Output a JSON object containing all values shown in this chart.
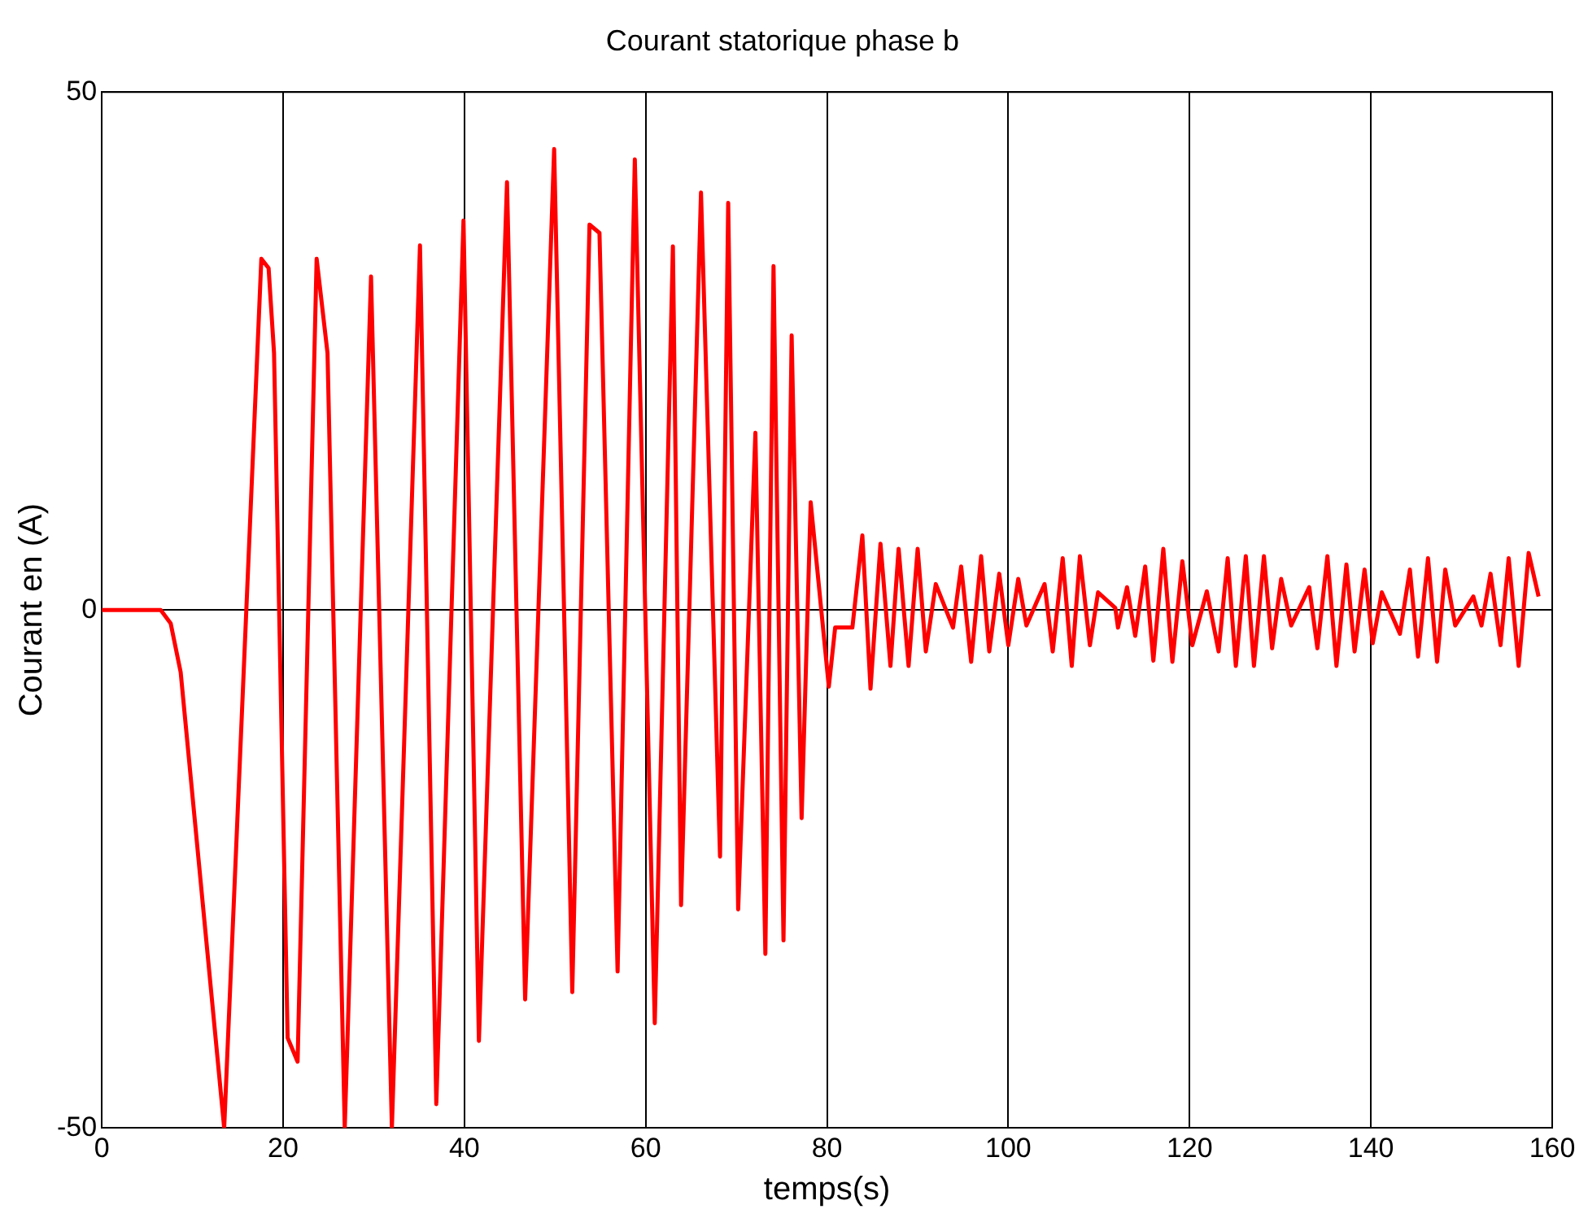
{
  "chart_data": {
    "type": "line",
    "title": "Courant statorique phase b",
    "xlabel": "temps(s)",
    "ylabel": "Courant en (A)",
    "xlim": [
      0,
      160
    ],
    "ylim": [
      -50,
      50
    ],
    "xticks": [
      0,
      20,
      40,
      60,
      80,
      100,
      120,
      140,
      160
    ],
    "yticks": [
      -50,
      0,
      50
    ],
    "grid": true,
    "legend": false,
    "marker": "none",
    "line_style": "solid",
    "series": [
      {
        "color": "#ff0000",
        "x": [
          0,
          6.5,
          7.6,
          8.7,
          13.5,
          17.6,
          18.4,
          19,
          20.5,
          21.6,
          23.7,
          24.9,
          26.8,
          29.7,
          32,
          35.1,
          36.9,
          39.9,
          41.6,
          44.7,
          46.7,
          49.9,
          51.9,
          53.8,
          54.9,
          56.9,
          58.8,
          61,
          63,
          63.9,
          66.1,
          68.2,
          69.1,
          70.2,
          72.1,
          73.2,
          74.1,
          75.2,
          76.1,
          77.2,
          78.2,
          80.2,
          80.9,
          82.8,
          83.9,
          84.8,
          85.9,
          87,
          87.9,
          89,
          90,
          90.9,
          92,
          93.9,
          94.8,
          95.9,
          97,
          97.9,
          99,
          100,
          101.1,
          102,
          104,
          104.9,
          106,
          107,
          107.9,
          109,
          109.9,
          111.8,
          112.1,
          113.1,
          114,
          115.1,
          116,
          117.1,
          118.1,
          119.2,
          120.3,
          121.9,
          123.2,
          124.2,
          125.1,
          126.2,
          127.1,
          128.2,
          129.1,
          130.1,
          131.2,
          133.2,
          134.1,
          135.2,
          136.2,
          137.3,
          138.2,
          139.3,
          140.2,
          141.2,
          143.2,
          144.3,
          145.2,
          146.3,
          147.3,
          148.2,
          149.3,
          151.3,
          152.2,
          153.2,
          154.3,
          155.2,
          156.3,
          157.4,
          158.5
        ],
        "values": [
          0,
          0,
          -1.3,
          -6,
          -50,
          33.9,
          33,
          24.8,
          -41.3,
          -43.6,
          33.9,
          24.8,
          -50,
          32.2,
          -50,
          35.2,
          -47.7,
          37.6,
          -41.6,
          41.3,
          -37.6,
          44.5,
          -36.9,
          37.2,
          36.4,
          -34.9,
          43.5,
          -39.9,
          35.1,
          -28.5,
          40.3,
          -23.8,
          39.3,
          -28.9,
          17.1,
          -33.2,
          33.2,
          -31.9,
          26.5,
          -20.1,
          10.4,
          -7.4,
          -1.7,
          -1.7,
          7.2,
          -7.6,
          6.4,
          -5.4,
          5.9,
          -5.4,
          5.9,
          -4,
          2.5,
          -1.7,
          4.2,
          -5,
          5.2,
          -4,
          3.5,
          -3.4,
          3,
          -1.5,
          2.5,
          -4,
          5,
          -5.4,
          5.2,
          -3.4,
          1.7,
          0.2,
          -1.7,
          2.2,
          -2.5,
          4.2,
          -4.9,
          5.9,
          -5,
          4.7,
          -3.4,
          1.8,
          -4,
          5,
          -5.4,
          5.2,
          -5.4,
          5.2,
          -3.7,
          3,
          -1.5,
          2.2,
          -3.7,
          5.2,
          -5.4,
          4.4,
          -4,
          3.9,
          -3.2,
          1.7,
          -2.3,
          3.9,
          -4.5,
          5,
          -5,
          3.9,
          -1.5,
          1.3,
          -1.5,
          3.5,
          -3.4,
          5,
          -5.4,
          5.5,
          1.3
        ]
      }
    ]
  }
}
